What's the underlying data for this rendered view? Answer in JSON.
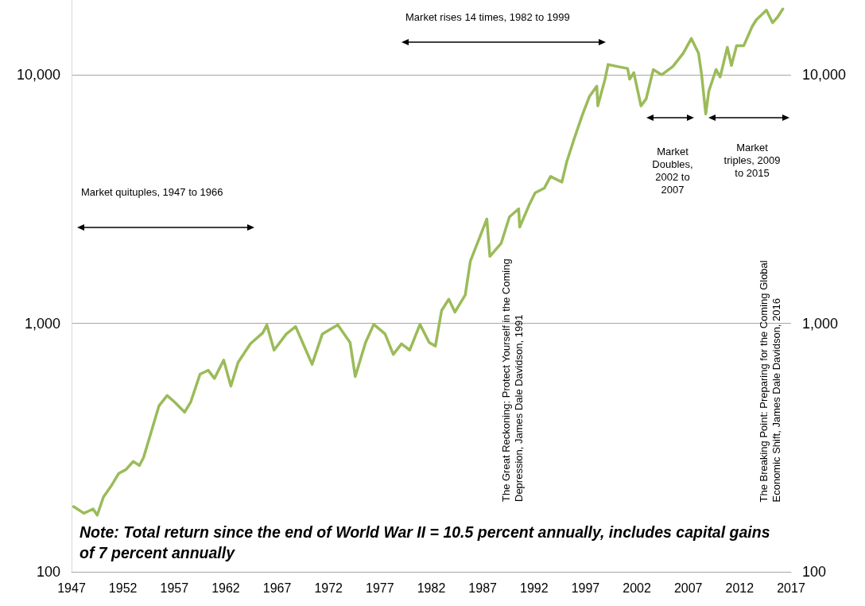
{
  "chart_data": {
    "type": "line",
    "x": [
      1947.2,
      1948.2,
      1949.1,
      1949.5,
      1950.1,
      1950.9,
      1951.6,
      1952.3,
      1953.0,
      1953.6,
      1954.0,
      1954.7,
      1955.5,
      1956.3,
      1957.0,
      1958.0,
      1958.6,
      1959.5,
      1960.3,
      1960.9,
      1961.8,
      1962.5,
      1963.2,
      1964.4,
      1965.6,
      1966.0,
      1966.7,
      1967.9,
      1968.8,
      1969.8,
      1970.4,
      1971.4,
      1972.9,
      1974.1,
      1974.6,
      1975.6,
      1976.4,
      1977.5,
      1978.3,
      1979.1,
      1979.9,
      1980.9,
      1981.8,
      1982.4,
      1983.0,
      1983.7,
      1984.3,
      1985.3,
      1985.8,
      1986.8,
      1987.4,
      1987.7,
      1988.8,
      1989.6,
      1990.5,
      1990.6,
      1991.5,
      1992.1,
      1993.0,
      1993.6,
      1994.7,
      1995.2,
      1995.9,
      1996.7,
      1997.4,
      1998.1,
      1998.2,
      1998.9,
      1999.2,
      2000.1,
      2001.1,
      2001.3,
      2001.7,
      2002.4,
      2002.9,
      2003.6,
      2004.4,
      2005.5,
      2006.5,
      2007.3,
      2008.0,
      2008.3,
      2008.7,
      2009.0,
      2009.7,
      2010.1,
      2010.8,
      2011.2,
      2011.7,
      2012.4,
      2013.2,
      2013.6,
      2014.6,
      2015.2,
      2015.7,
      2016.2
    ],
    "series": [
      {
        "color": "#9bbb59",
        "values": [
          183,
          172,
          179,
          169,
          200,
          223,
          249,
          258,
          278,
          268,
          288,
          360,
          465,
          512,
          483,
          439,
          483,
          624,
          647,
          600,
          711,
          559,
          696,
          827,
          915,
          985,
          780,
          906,
          970,
          780,
          684,
          906,
          985,
          837,
          611,
          837,
          990,
          906,
          750,
          827,
          780,
          990,
          837,
          810,
          1125,
          1250,
          1110,
          1300,
          1780,
          2270,
          2630,
          1860,
          2100,
          2680,
          2890,
          2440,
          2980,
          3350,
          3500,
          3900,
          3700,
          4500,
          5530,
          6900,
          8200,
          9000,
          7500,
          9600,
          11000,
          10800,
          10600,
          9600,
          10200,
          7500,
          8000,
          10500,
          10000,
          10800,
          12200,
          14000,
          12200,
          10000,
          6960,
          8600,
          10500,
          9800,
          12900,
          10900,
          13100,
          13100,
          15600,
          16600,
          18200,
          16200,
          17100,
          18400
        ]
      }
    ],
    "xlim": [
      1947,
      2017
    ],
    "xticks": [
      1947,
      1952,
      1957,
      1962,
      1967,
      1972,
      1977,
      1982,
      1987,
      1992,
      1997,
      2002,
      2007,
      2012,
      2017
    ],
    "ylim": [
      100,
      20000
    ],
    "yticks": [
      {
        "value": 100,
        "label": "100"
      },
      {
        "value": 1000,
        "label": "1,000"
      },
      {
        "value": 10000,
        "label": "10,000"
      }
    ],
    "log": "y",
    "grid": "y",
    "marker": "none",
    "line_style": "solid",
    "annotations": [
      "Note: Total return since the end of World War II = 10.5 percent annually, includes capital gains of 7 percent annually",
      "Market quituples, 1947 to 1966",
      "Market rises 14 times, 1982 to 1999",
      "Market Doubles, 2002 to 2007",
      "Market triples, 2009 to 2015",
      "The Great Reckoning: Protect Yourself in the Coming Depression, James Dale Davidson, 1991",
      "The Breaking Point: Preparing for the Coming Global Economic Shift, James Dale Davidson, 2016"
    ]
  }
}
